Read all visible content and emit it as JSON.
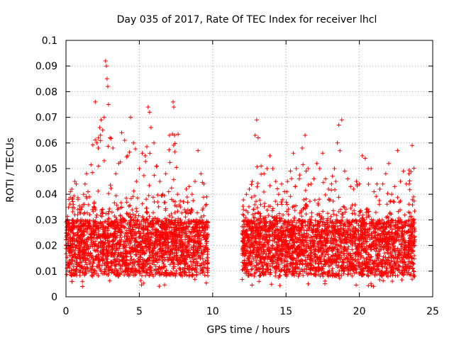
{
  "chart_data": {
    "type": "scatter",
    "title": "Day 035 of 2017, Rate Of TEC Index for receiver lhcl",
    "xlabel": "GPS time / hours",
    "ylabel": "ROTI / TECUs",
    "xlim": [
      0,
      25
    ],
    "ylim": [
      0,
      0.1
    ],
    "xticks": [
      0,
      5,
      10,
      15,
      20,
      25
    ],
    "xtick_labels": [
      "0",
      "5",
      "10",
      "15",
      "20",
      "25"
    ],
    "yticks": [
      0,
      0.01,
      0.02,
      0.03,
      0.04,
      0.05,
      0.06,
      0.07,
      0.08,
      0.09,
      0.1
    ],
    "ytick_labels": [
      "0",
      "0.01",
      "0.02",
      "0.03",
      "0.04",
      "0.05",
      "0.06",
      "0.07",
      "0.08",
      "0.09",
      "0.1"
    ],
    "grid": true,
    "marker": "+",
    "color": "#ff0000",
    "series": [
      {
        "name": "ROTI",
        "segments": [
          {
            "x_start": 0.0,
            "x_end": 9.7,
            "y_min": 0.004
          },
          {
            "x_start": 12.0,
            "x_end": 23.8,
            "y_min": 0.004
          }
        ],
        "points": [
          [
            0.1,
            0.03
          ],
          [
            0.2,
            0.038
          ],
          [
            0.3,
            0.041
          ],
          [
            0.4,
            0.042
          ],
          [
            0.5,
            0.036
          ],
          [
            0.6,
            0.045
          ],
          [
            0.7,
            0.044
          ],
          [
            0.8,
            0.032
          ],
          [
            1.0,
            0.03
          ],
          [
            1.1,
            0.035
          ],
          [
            1.2,
            0.04
          ],
          [
            1.3,
            0.044
          ],
          [
            1.4,
            0.048
          ],
          [
            1.5,
            0.041
          ],
          [
            1.6,
            0.039
          ],
          [
            1.8,
            0.034
          ],
          [
            2.0,
            0.076
          ],
          [
            2.1,
            0.06
          ],
          [
            2.2,
            0.058
          ],
          [
            2.3,
            0.066
          ],
          [
            2.4,
            0.069
          ],
          [
            2.5,
            0.065
          ],
          [
            2.6,
            0.07
          ],
          [
            2.7,
            0.092
          ],
          [
            2.75,
            0.09
          ],
          [
            2.8,
            0.085
          ],
          [
            2.85,
            0.082
          ],
          [
            2.9,
            0.075
          ],
          [
            3.0,
            0.062
          ],
          [
            3.2,
            0.058
          ],
          [
            3.4,
            0.048
          ],
          [
            3.6,
            0.052
          ],
          [
            3.8,
            0.064
          ],
          [
            4.0,
            0.061
          ],
          [
            4.2,
            0.055
          ],
          [
            4.4,
            0.07
          ],
          [
            4.6,
            0.06
          ],
          [
            4.8,
            0.045
          ],
          [
            5.0,
            0.05
          ],
          [
            5.2,
            0.056
          ],
          [
            5.4,
            0.055
          ],
          [
            5.6,
            0.074
          ],
          [
            5.7,
            0.072
          ],
          [
            5.8,
            0.066
          ],
          [
            6.0,
            0.06
          ],
          [
            6.2,
            0.051
          ],
          [
            6.4,
            0.045
          ],
          [
            6.6,
            0.04
          ],
          [
            6.8,
            0.048
          ],
          [
            7.0,
            0.041
          ],
          [
            7.2,
            0.038
          ],
          [
            7.3,
            0.076
          ],
          [
            7.35,
            0.074
          ],
          [
            7.4,
            0.063
          ],
          [
            7.6,
            0.04
          ],
          [
            7.8,
            0.035
          ],
          [
            8.0,
            0.037
          ],
          [
            8.2,
            0.042
          ],
          [
            8.4,
            0.043
          ],
          [
            8.6,
            0.04
          ],
          [
            8.8,
            0.045
          ],
          [
            9.0,
            0.057
          ],
          [
            9.2,
            0.048
          ],
          [
            9.4,
            0.044
          ],
          [
            9.6,
            0.039
          ],
          [
            12.1,
            0.034
          ],
          [
            12.3,
            0.04
          ],
          [
            12.5,
            0.042
          ],
          [
            12.7,
            0.045
          ],
          [
            12.9,
            0.063
          ],
          [
            13.0,
            0.069
          ],
          [
            13.1,
            0.062
          ],
          [
            13.3,
            0.051
          ],
          [
            13.5,
            0.048
          ],
          [
            13.7,
            0.05
          ],
          [
            13.9,
            0.055
          ],
          [
            14.1,
            0.05
          ],
          [
            14.3,
            0.045
          ],
          [
            14.5,
            0.04
          ],
          [
            14.7,
            0.044
          ],
          [
            14.9,
            0.041
          ],
          [
            15.1,
            0.045
          ],
          [
            15.3,
            0.049
          ],
          [
            15.5,
            0.056
          ],
          [
            15.7,
            0.05
          ],
          [
            15.9,
            0.046
          ],
          [
            16.1,
            0.058
          ],
          [
            16.3,
            0.063
          ],
          [
            16.5,
            0.05
          ],
          [
            16.7,
            0.044
          ],
          [
            16.9,
            0.046
          ],
          [
            17.1,
            0.052
          ],
          [
            17.3,
            0.05
          ],
          [
            17.5,
            0.056
          ],
          [
            17.7,
            0.046
          ],
          [
            17.9,
            0.042
          ],
          [
            18.1,
            0.044
          ],
          [
            18.3,
            0.05
          ],
          [
            18.5,
            0.06
          ],
          [
            18.6,
            0.067
          ],
          [
            18.8,
            0.069
          ],
          [
            19.0,
            0.049
          ],
          [
            19.2,
            0.046
          ],
          [
            19.4,
            0.043
          ],
          [
            19.6,
            0.042
          ],
          [
            19.8,
            0.045
          ],
          [
            20.0,
            0.044
          ],
          [
            20.2,
            0.055
          ],
          [
            20.4,
            0.054
          ],
          [
            20.6,
            0.05
          ],
          [
            20.8,
            0.05
          ],
          [
            21.0,
            0.041
          ],
          [
            21.2,
            0.044
          ],
          [
            21.4,
            0.042
          ],
          [
            21.6,
            0.044
          ],
          [
            21.8,
            0.048
          ],
          [
            22.0,
            0.052
          ],
          [
            22.2,
            0.04
          ],
          [
            22.4,
            0.043
          ],
          [
            22.6,
            0.057
          ],
          [
            22.8,
            0.045
          ],
          [
            23.0,
            0.049
          ],
          [
            23.2,
            0.044
          ],
          [
            23.4,
            0.044
          ],
          [
            23.6,
            0.059
          ],
          [
            23.7,
            0.039
          ]
        ]
      }
    ]
  }
}
